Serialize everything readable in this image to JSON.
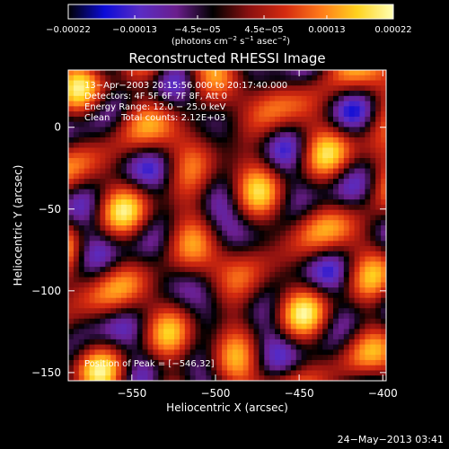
{
  "chart_data": {
    "type": "heatmap",
    "title": "Reconstructed RHESSI Image",
    "xlabel": "Heliocentric X (arcsec)",
    "ylabel": "Heliocentric Y (arcsec)",
    "xlim": [
      -588,
      -398
    ],
    "ylim": [
      -155,
      35
    ],
    "x_ticks": [
      -550,
      -500,
      -450,
      -400
    ],
    "x_tick_labels": [
      "−550",
      "−500",
      "−450",
      "−400"
    ],
    "y_ticks": [
      0,
      -50,
      -100,
      -150
    ],
    "y_tick_labels": [
      "0",
      "−50",
      "−100",
      "−150"
    ],
    "colorbar": {
      "min": -0.00022,
      "max": 0.00022,
      "ticks": [
        -0.00022,
        -0.00013,
        -4.5e-05,
        4.5e-05,
        0.00013,
        0.00022
      ],
      "tick_labels": [
        "−0.00022",
        "−0.00013",
        "−4.5e−05",
        "4.5e−05",
        "0.00013",
        "0.00022"
      ],
      "units_prefix": "(photons cm",
      "units_exp1": "−2",
      "units_mid": " s",
      "units_exp2": "−1",
      "units_mid2": " asec",
      "units_exp3": "−2",
      "units_suffix": ")"
    },
    "annotations": {
      "time_range": "13−Apr−2003 20:15:56.000 to 20:17:40.000",
      "detectors": "Detectors: 4F 5F 6F 7F 8F, Att 0",
      "energy": "Energy Range: 12.0 − 25.0 keV",
      "clean": "Clean    Total counts: 2.12E+03",
      "peak": "Position of Peak = [−546,32]"
    },
    "peak_position": [
      -546,
      32
    ],
    "colormap": [
      "#000000",
      "#0b0bd8",
      "#5a2cc4",
      "#6a1e8c",
      "#000000",
      "#8a1010",
      "#d42a10",
      "#ff7a1a",
      "#ffd21e",
      "#ffffb4"
    ]
  },
  "footer": {
    "timestamp": "24−May−2013 03:41"
  }
}
